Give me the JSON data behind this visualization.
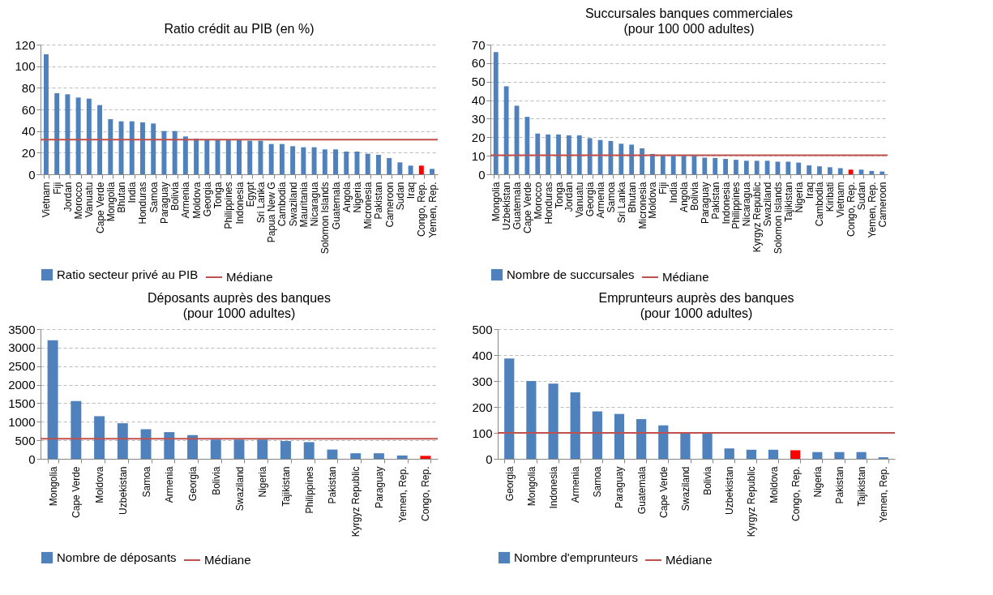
{
  "chart_data": [
    {
      "type": "bar",
      "title": "Ratio crédit au PIB (en %)",
      "categories": [
        "Vietnam",
        "Fiji",
        "Jordan",
        "Morocco",
        "Vanuatu",
        "Cape Verde",
        "Mongolia",
        "Bhutan",
        "India",
        "Honduras",
        "Samoa",
        "Paraguay",
        "Bolivia",
        "Armenia",
        "Moldova",
        "Georgia",
        "Tonga",
        "Philippines",
        "Indonesia",
        "Egypt",
        "Sri Lanka",
        "Papua New G",
        "Cambodia",
        "Swaziland",
        "Mauritania",
        "Nicaragua",
        "Solomon Islands",
        "Guatemala",
        "Angola",
        "Nigeria",
        "Micronesia",
        "Pakistan",
        "Cameroon",
        "Sudan",
        "Iraq",
        "Congo, Rep.",
        "Yemen, Rep."
      ],
      "series": [
        {
          "name": "Ratio secteur privé au PIB",
          "color": "#4f81bd",
          "values": [
            111,
            75,
            74,
            71,
            70,
            64,
            51,
            49,
            49,
            48,
            47,
            40,
            40,
            35,
            33,
            32,
            32,
            32,
            32,
            31,
            31,
            28,
            28,
            26,
            25,
            25,
            23,
            23,
            21,
            21,
            19,
            18,
            15,
            11,
            8,
            8,
            5
          ],
          "colors": [
            "#4f81bd",
            "#4f81bd",
            "#4f81bd",
            "#4f81bd",
            "#4f81bd",
            "#4f81bd",
            "#4f81bd",
            "#4f81bd",
            "#4f81bd",
            "#4f81bd",
            "#4f81bd",
            "#4f81bd",
            "#4f81bd",
            "#4f81bd",
            "#4f81bd",
            "#4f81bd",
            "#4f81bd",
            "#4f81bd",
            "#4f81bd",
            "#4f81bd",
            "#4f81bd",
            "#4f81bd",
            "#4f81bd",
            "#4f81bd",
            "#4f81bd",
            "#4f81bd",
            "#4f81bd",
            "#4f81bd",
            "#4f81bd",
            "#4f81bd",
            "#4f81bd",
            "#4f81bd",
            "#4f81bd",
            "#4f81bd",
            "#4f81bd",
            "#ff0000",
            "#4f81bd"
          ]
        }
      ],
      "ref_lines": [
        {
          "axis": "y",
          "value": 32,
          "label": "Médiane",
          "color": "#c0504d"
        }
      ],
      "ylim": [
        0,
        120
      ],
      "yticks": [
        0,
        20,
        40,
        60,
        80,
        100,
        120
      ],
      "grid": "y",
      "legend": "bottom"
    },
    {
      "type": "bar",
      "title": "Succursales banques commerciales",
      "subtitle": "(pour 100 000 adultes)",
      "categories": [
        "Mongolia",
        "Uzbekistan",
        "Guatemala",
        "Cape Verde",
        "Morocco",
        "Honduras",
        "Tonga",
        "Jordan",
        "Vanuatu",
        "Georgia",
        "Armenia",
        "Samoa",
        "Sri Lanka",
        "Bhutan",
        "Micronesia",
        "Moldova",
        "Fiji",
        "India",
        "Angola",
        "Bolivia",
        "Paraguay",
        "Pakistan",
        "Indonesia",
        "Philippines",
        "Nicaragua",
        "Kyrgyz Republic",
        "Swaziland",
        "Solomon Islands",
        "Tajikistan",
        "Nigeria",
        "Iraq",
        "Cambodia",
        "Kiribati",
        "Vietnam",
        "Congo, Rep.",
        "Sudan",
        "Yemen, Rep.",
        "Cameroon"
      ],
      "series": [
        {
          "name": "Nombre de succursales",
          "color": "#4f81bd",
          "values": [
            66,
            47.5,
            37,
            31,
            22,
            21.5,
            21.5,
            21,
            21,
            19.5,
            18.5,
            18,
            16.5,
            16,
            14,
            11,
            10.5,
            10,
            10,
            10,
            9,
            8.8,
            8.3,
            7.8,
            7.3,
            7.3,
            7.3,
            6.8,
            6.8,
            6.3,
            4.8,
            4.3,
            3.8,
            3.3,
            2.5,
            2.5,
            1.8,
            1.5
          ],
          "colors": [
            "#4f81bd",
            "#4f81bd",
            "#4f81bd",
            "#4f81bd",
            "#4f81bd",
            "#4f81bd",
            "#4f81bd",
            "#4f81bd",
            "#4f81bd",
            "#4f81bd",
            "#4f81bd",
            "#4f81bd",
            "#4f81bd",
            "#4f81bd",
            "#4f81bd",
            "#4f81bd",
            "#4f81bd",
            "#4f81bd",
            "#4f81bd",
            "#4f81bd",
            "#4f81bd",
            "#4f81bd",
            "#4f81bd",
            "#4f81bd",
            "#4f81bd",
            "#4f81bd",
            "#4f81bd",
            "#4f81bd",
            "#4f81bd",
            "#4f81bd",
            "#4f81bd",
            "#4f81bd",
            "#4f81bd",
            "#4f81bd",
            "#ff0000",
            "#4f81bd",
            "#4f81bd",
            "#4f81bd"
          ]
        }
      ],
      "ref_lines": [
        {
          "axis": "y",
          "value": 10.3,
          "label": "Médiane",
          "color": "#c0504d"
        }
      ],
      "ylim": [
        0,
        70
      ],
      "yticks": [
        0,
        10,
        20,
        30,
        40,
        50,
        60,
        70
      ],
      "grid": "y",
      "legend": "bottom"
    },
    {
      "type": "bar",
      "title": "Déposants auprès des banques",
      "subtitle": "(pour 1000 adultes)",
      "categories": [
        "Mongolia",
        "Cape Verde",
        "Moldova",
        "Uzbekistan",
        "Samoa",
        "Armenia",
        "Georgia",
        "Bolivia",
        "Swaziland",
        "Nigeria",
        "Tajikistan",
        "Philippines",
        "Pakistan",
        "Kyrgyz Republic",
        "Paraguay",
        "Yemen, Rep.",
        "Congo, Rep."
      ],
      "series": [
        {
          "name": "Nombre de déposants",
          "color": "#4f81bd",
          "values": [
            3200,
            1560,
            1150,
            960,
            800,
            720,
            640,
            520,
            520,
            520,
            480,
            450,
            250,
            150,
            150,
            90,
            80
          ],
          "colors": [
            "#4f81bd",
            "#4f81bd",
            "#4f81bd",
            "#4f81bd",
            "#4f81bd",
            "#4f81bd",
            "#4f81bd",
            "#4f81bd",
            "#4f81bd",
            "#4f81bd",
            "#4f81bd",
            "#4f81bd",
            "#4f81bd",
            "#4f81bd",
            "#4f81bd",
            "#4f81bd",
            "#ff0000"
          ]
        }
      ],
      "ref_lines": [
        {
          "axis": "y",
          "value": 540,
          "label": "Médiane",
          "color": "#c0504d"
        }
      ],
      "ylim": [
        0,
        3500
      ],
      "yticks": [
        0,
        500,
        1000,
        1500,
        2000,
        2500,
        3000,
        3500
      ],
      "grid": "y",
      "legend": "bottom"
    },
    {
      "type": "bar",
      "title": "Emprunteurs auprès des banques",
      "subtitle": "(pour 1000 adultes)",
      "categories": [
        "Georgia",
        "Mongolia",
        "Indonesia",
        "Armenia",
        "Samoa",
        "Paraguay",
        "Guatemala",
        "Cape Verde",
        "Swaziland",
        "Bolivia",
        "Uzbekistan",
        "Kyrgyz Republic",
        "Moldova",
        "Congo, Rep.",
        "Nigeria",
        "Pakistan",
        "Tajikistan",
        "Yemen, Rep."
      ],
      "series": [
        {
          "name": "Nombre d'emprunteurs",
          "color": "#4f81bd",
          "values": [
            387,
            300,
            290,
            256,
            183,
            173,
            153,
            129,
            100,
            100,
            40,
            35,
            35,
            33,
            26,
            26,
            26,
            6
          ],
          "colors": [
            "#4f81bd",
            "#4f81bd",
            "#4f81bd",
            "#4f81bd",
            "#4f81bd",
            "#4f81bd",
            "#4f81bd",
            "#4f81bd",
            "#4f81bd",
            "#4f81bd",
            "#4f81bd",
            "#4f81bd",
            "#4f81bd",
            "#ff0000",
            "#4f81bd",
            "#4f81bd",
            "#4f81bd",
            "#4f81bd"
          ]
        }
      ],
      "ref_lines": [
        {
          "axis": "y",
          "value": 100,
          "label": "Médiane",
          "color": "#c0504d"
        }
      ],
      "ylim": [
        0,
        500
      ],
      "yticks": [
        0,
        100,
        200,
        300,
        400,
        500
      ],
      "grid": "y",
      "legend": "bottom"
    }
  ]
}
